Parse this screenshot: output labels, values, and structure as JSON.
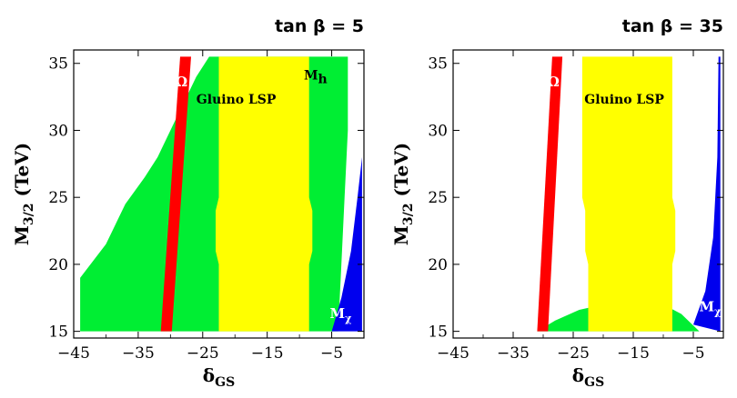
{
  "chart_data": [
    {
      "type": "region-plot",
      "title_prefix": "tan",
      "title_symbol": "β",
      "title_value": "= 5",
      "xlabel_main": "δ",
      "xlabel_sub": "GS",
      "ylabel_main": "M",
      "ylabel_sub": "3/2",
      "ylabel_unit": "(TeV)",
      "xlim": [
        -45,
        0
      ],
      "ylim": [
        14.5,
        36
      ],
      "xticks": [
        -45,
        -35,
        -25,
        -15,
        -5
      ],
      "yticks": [
        15,
        20,
        25,
        30,
        35
      ],
      "regions": [
        {
          "name": "green-region",
          "color": "#00ee33",
          "points": [
            [
              -44,
              15
            ],
            [
              -44,
              19
            ],
            [
              -40,
              21.5
            ],
            [
              -37,
              24.5
            ],
            [
              -34,
              26.5
            ],
            [
              -32,
              28
            ],
            [
              -30,
              30
            ],
            [
              -28,
              32
            ],
            [
              -26,
              34
            ],
            [
              -24,
              35.5
            ],
            [
              -2.5,
              35.5
            ],
            [
              -2.5,
              30
            ],
            [
              -3,
              25
            ],
            [
              -3.5,
              20
            ],
            [
              -4,
              15
            ]
          ]
        },
        {
          "name": "yellow-region",
          "color": "#ffff00",
          "points": [
            [
              -24,
              35.5
            ],
            [
              -8.5,
              35.5
            ],
            [
              -8.5,
              25
            ],
            [
              -8,
              24
            ],
            [
              -8,
              21
            ],
            [
              -8.5,
              20
            ],
            [
              -8.5,
              15
            ],
            [
              -22.5,
              15
            ],
            [
              -22.5,
              20
            ],
            [
              -23,
              21
            ],
            [
              -23,
              24
            ],
            [
              -22.5,
              25
            ],
            [
              -22.5,
              35.5
            ]
          ]
        },
        {
          "name": "red-omega-band",
          "color": "#ff0000",
          "points": [
            [
              -28.5,
              35.5
            ],
            [
              -26.8,
              35.5
            ],
            [
              -29.8,
              15
            ],
            [
              -31.5,
              15
            ]
          ]
        },
        {
          "name": "blue-mchi-region",
          "color": "#0000ee",
          "points": [
            [
              -5,
              15
            ],
            [
              -3.5,
              17.5
            ],
            [
              -2,
              21
            ],
            [
              -1,
              25
            ],
            [
              -0.3,
              28
            ],
            [
              -0.3,
              15
            ]
          ]
        }
      ],
      "labels": [
        {
          "name": "omega-label",
          "text": "Ω",
          "x": -28.3,
          "y": 33.3,
          "white": true
        },
        {
          "name": "gluino-label",
          "text": "Gluino LSP",
          "x": -19.8,
          "y": 32
        },
        {
          "name": "mh-label",
          "text": "M",
          "sub": "h",
          "x": -7.5,
          "y": 33.8,
          "big": true
        },
        {
          "name": "mchi-label",
          "text": "M",
          "sub": "χ",
          "x": -3.6,
          "y": 16,
          "white": true
        }
      ]
    },
    {
      "type": "region-plot",
      "title_prefix": "tan",
      "title_symbol": "β",
      "title_value": "= 35",
      "xlabel_main": "δ",
      "xlabel_sub": "GS",
      "ylabel_main": "M",
      "ylabel_sub": "3/2",
      "ylabel_unit": "(TeV)",
      "xlim": [
        -45,
        0
      ],
      "ylim": [
        14.5,
        36
      ],
      "xticks": [
        -45,
        -35,
        -25,
        -15,
        -5
      ],
      "yticks": [
        15,
        20,
        25,
        30,
        35
      ],
      "regions": [
        {
          "name": "green-region",
          "color": "#00ee33",
          "points": [
            [
              -31,
              15
            ],
            [
              -28,
              15.8
            ],
            [
              -24,
              16.6
            ],
            [
              -20,
              17
            ],
            [
              -15,
              17.3
            ],
            [
              -10,
              17
            ],
            [
              -7,
              16.3
            ],
            [
              -4,
              15
            ]
          ]
        },
        {
          "name": "yellow-region",
          "color": "#ffff00",
          "points": [
            [
              -23.5,
              35.5
            ],
            [
              -8.5,
              35.5
            ],
            [
              -8.5,
              25
            ],
            [
              -8,
              24
            ],
            [
              -8,
              21
            ],
            [
              -8.5,
              20
            ],
            [
              -8.5,
              15
            ],
            [
              -22.5,
              15
            ],
            [
              -22.5,
              20
            ],
            [
              -23,
              21
            ],
            [
              -23,
              24
            ],
            [
              -23.5,
              25
            ]
          ]
        },
        {
          "name": "red-omega-band",
          "color": "#ff0000",
          "points": [
            [
              -28.5,
              35.5
            ],
            [
              -26.8,
              35.5
            ],
            [
              -29.2,
              15
            ],
            [
              -31,
              15
            ]
          ]
        },
        {
          "name": "blue-mchi-region",
          "color": "#0000ee",
          "points": [
            [
              -5,
              15.5
            ],
            [
              -3,
              18
            ],
            [
              -1.7,
              22
            ],
            [
              -1,
              28
            ],
            [
              -0.8,
              35.5
            ],
            [
              -0.5,
              35.5
            ],
            [
              -0.5,
              15
            ]
          ]
        }
      ],
      "labels": [
        {
          "name": "omega-label",
          "text": "Ω",
          "x": -28.3,
          "y": 33.3,
          "white": true
        },
        {
          "name": "gluino-label",
          "text": "Gluino LSP",
          "x": -16.5,
          "y": 32
        },
        {
          "name": "mchi-label",
          "text": "M",
          "sub": "χ",
          "x": -2.2,
          "y": 16.5,
          "white": true
        }
      ]
    }
  ]
}
